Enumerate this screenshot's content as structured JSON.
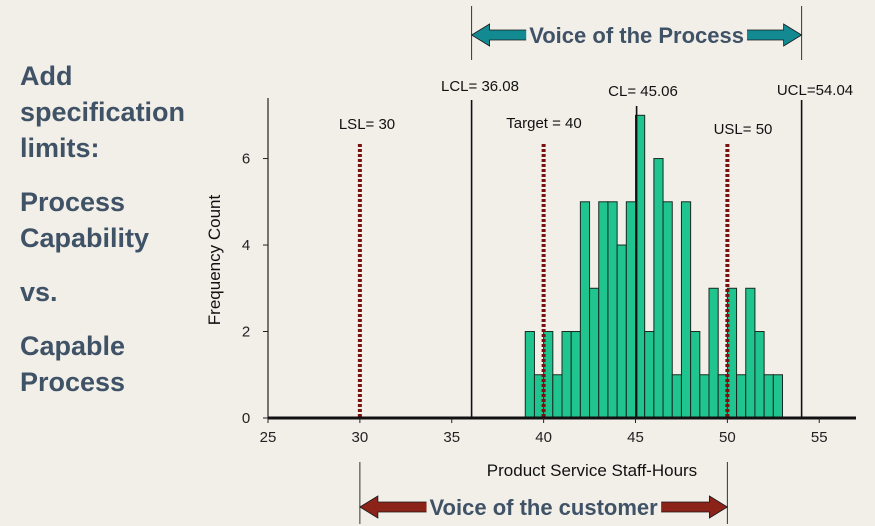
{
  "side_text": {
    "block1": [
      "Add",
      "specification",
      "limits:"
    ],
    "block2": [
      "Process",
      "Capability"
    ],
    "block3": [
      "vs."
    ],
    "block4": [
      "Capable",
      "Process"
    ]
  },
  "chart_data": {
    "type": "bar",
    "xlabel": "Product Service Staff-Hours",
    "ylabel": "Frequency Count",
    "xlim": [
      25,
      57
    ],
    "ylim": [
      0,
      7.4
    ],
    "x_ticks": [
      25,
      30,
      35,
      40,
      45,
      50,
      55
    ],
    "y_ticks": [
      0,
      2,
      4,
      6
    ],
    "bin_width": 0.5,
    "bars": [
      {
        "x": 39.0,
        "count": 2
      },
      {
        "x": 39.5,
        "count": 1
      },
      {
        "x": 40.0,
        "count": 2
      },
      {
        "x": 40.5,
        "count": 1
      },
      {
        "x": 41.0,
        "count": 2
      },
      {
        "x": 41.5,
        "count": 2
      },
      {
        "x": 42.0,
        "count": 5
      },
      {
        "x": 42.5,
        "count": 3
      },
      {
        "x": 43.0,
        "count": 5
      },
      {
        "x": 43.5,
        "count": 5
      },
      {
        "x": 44.0,
        "count": 4
      },
      {
        "x": 44.5,
        "count": 5
      },
      {
        "x": 45.0,
        "count": 7
      },
      {
        "x": 45.5,
        "count": 2
      },
      {
        "x": 46.0,
        "count": 6
      },
      {
        "x": 46.5,
        "count": 5
      },
      {
        "x": 47.0,
        "count": 1
      },
      {
        "x": 47.5,
        "count": 5
      },
      {
        "x": 48.0,
        "count": 2
      },
      {
        "x": 48.5,
        "count": 1
      },
      {
        "x": 49.0,
        "count": 3
      },
      {
        "x": 49.5,
        "count": 1
      },
      {
        "x": 50.0,
        "count": 3
      },
      {
        "x": 50.5,
        "count": 1
      },
      {
        "x": 51.0,
        "count": 3
      },
      {
        "x": 51.5,
        "count": 2
      },
      {
        "x": 52.0,
        "count": 1
      },
      {
        "x": 52.5,
        "count": 1
      }
    ],
    "control_lines": [
      {
        "name": "LCL",
        "label": "LCL= 36.08",
        "value": 36.08
      },
      {
        "name": "CL",
        "label": "CL= 45.06",
        "value": 45.06
      },
      {
        "name": "UCL",
        "label": "UCL=54.04",
        "value": 54.04
      }
    ],
    "spec_lines": [
      {
        "name": "LSL",
        "label": "LSL= 30",
        "value": 30
      },
      {
        "name": "Target",
        "label": "Target = 40",
        "value": 40
      },
      {
        "name": "USL",
        "label": "USL= 50",
        "value": 50
      }
    ],
    "annotations": {
      "process": {
        "label": "Voice of the Process",
        "from": 36.08,
        "to": 54.04,
        "color": "#138a92"
      },
      "customer": {
        "label": "Voice of the customer",
        "from": 30,
        "to": 50,
        "color": "#8b2318"
      }
    },
    "colors": {
      "bar_fill": "#1fc48f",
      "bar_stroke": "#1a2a22",
      "spec_line": "#7a1010",
      "control_line": "#111111",
      "text_heading": "#3f5266"
    }
  }
}
